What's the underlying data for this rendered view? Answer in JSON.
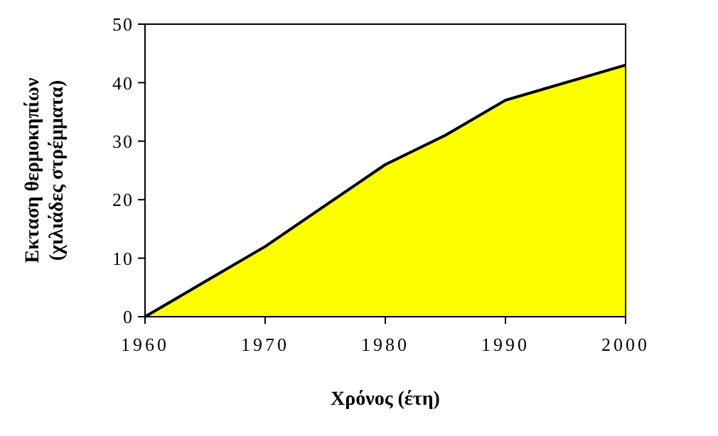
{
  "chart_data": {
    "type": "area",
    "xlabel": "Χρόνος (έτη)",
    "ylabel": "Εκταση θερμοκηπίων\n(χιλιάδες στρέμματα)",
    "x": [
      1960,
      1965,
      1970,
      1975,
      1980,
      1985,
      1990,
      1995,
      2000
    ],
    "series": [
      {
        "color": "#ffff00",
        "values": [
          0,
          6,
          12,
          19,
          26,
          31,
          37,
          40,
          43
        ]
      }
    ],
    "xlim": [
      1960,
      2000
    ],
    "xticks": [
      1960,
      1970,
      1980,
      1990,
      2000
    ],
    "ylim": [
      0,
      50
    ],
    "yticks": [
      0,
      10,
      20,
      30,
      40,
      50
    ],
    "grid": false
  }
}
